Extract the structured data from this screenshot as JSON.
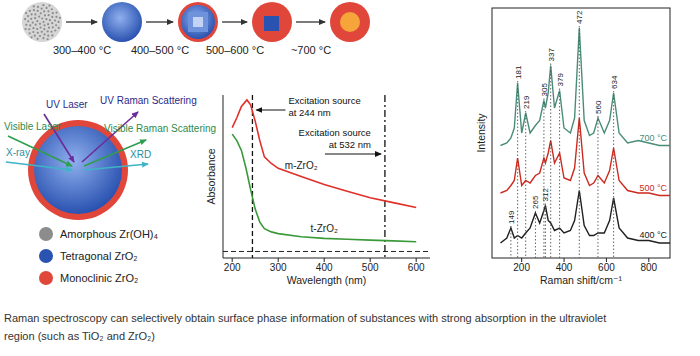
{
  "diagram": {
    "temperatures": [
      "300–400 °C",
      "400–500 °C",
      "500–600 °C",
      "~700 °C"
    ],
    "probes": [
      "UV Laser",
      "UV Raman Scattering",
      "Visible Laser",
      "Visible Raman Scattering",
      "X-ray",
      "XRD"
    ],
    "legend": [
      {
        "label": "Amorphous Zr(OH)₄",
        "color": "#8c8c8c"
      },
      {
        "label": "Tetragonal ZrO₂",
        "color": "#2a52b0"
      },
      {
        "label": "Monoclinic ZrO₂",
        "color": "#e0463a"
      }
    ]
  },
  "chart_data": [
    {
      "type": "line",
      "x_label": "Wavelength (nm)",
      "y_label": "Absorbance",
      "xlim": [
        180,
        630
      ],
      "xticks": [
        200,
        300,
        400,
        500,
        600
      ],
      "ylim": [
        0,
        1
      ],
      "tick_labels": "x",
      "series": [
        {
          "name": "m-ZrO₂",
          "color": "#e0302a",
          "x": [
            200,
            210,
            220,
            232,
            240,
            250,
            260,
            270,
            285,
            300,
            350,
            400,
            450,
            500,
            550,
            600
          ],
          "values": [
            0.8,
            0.86,
            0.93,
            0.97,
            0.94,
            0.84,
            0.72,
            0.62,
            0.58,
            0.55,
            0.5,
            0.45,
            0.41,
            0.37,
            0.34,
            0.31
          ]
        },
        {
          "name": "t-ZrO₂",
          "color": "#3a9a3a",
          "x": [
            200,
            210,
            220,
            230,
            240,
            250,
            260,
            270,
            285,
            300,
            350,
            400,
            450,
            500,
            550,
            600
          ],
          "values": [
            0.76,
            0.72,
            0.66,
            0.55,
            0.42,
            0.3,
            0.22,
            0.18,
            0.16,
            0.15,
            0.13,
            0.12,
            0.115,
            0.11,
            0.105,
            0.1
          ]
        }
      ],
      "excitation": [
        {
          "value": 244,
          "lines": [
            "Excitation source",
            "at 244 nm"
          ]
        },
        {
          "value": 532,
          "lines": [
            "Excitation source",
            "at 532 nm"
          ]
        }
      ],
      "baseline": 0.04
    },
    {
      "type": "line",
      "x_label": "Raman shift/cm⁻¹",
      "y_label": "Intensity",
      "xlim": [
        60,
        900
      ],
      "xticks": [
        200,
        400,
        600,
        800
      ],
      "ylim": [
        0,
        100
      ],
      "tick_labels": "x",
      "x": [
        100,
        130,
        149,
        165,
        181,
        200,
        219,
        240,
        265,
        285,
        305,
        312,
        325,
        337,
        355,
        379,
        400,
        430,
        450,
        472,
        495,
        520,
        540,
        560,
        590,
        615,
        634,
        660,
        700,
        750,
        800,
        850,
        900
      ],
      "series": [
        {
          "name": "700 °C",
          "color": "#4a8c78",
          "values": [
            45,
            46,
            48,
            52,
            70,
            50,
            58,
            50,
            53,
            55,
            63,
            60,
            66,
            77,
            60,
            67,
            52,
            50,
            56,
            92,
            55,
            49,
            50,
            56,
            50,
            55,
            66,
            50,
            46,
            47,
            46,
            45,
            45
          ]
        },
        {
          "name": "500 °C",
          "color": "#cc2a1e",
          "values": [
            26,
            27,
            29,
            31,
            40,
            29,
            31,
            30,
            33,
            34,
            40,
            38,
            42,
            47,
            38,
            42,
            32,
            31,
            36,
            56,
            34,
            29,
            30,
            33,
            30,
            35,
            44,
            31,
            27,
            26,
            26,
            25,
            25
          ]
        },
        {
          "name": "400 °C",
          "color": "#202020",
          "values": [
            6,
            8,
            12,
            8,
            9,
            8,
            10,
            12,
            18,
            14,
            19,
            21,
            15,
            14,
            11,
            12,
            10,
            11,
            15,
            27,
            13,
            9,
            9,
            10,
            10,
            15,
            24,
            12,
            8,
            7,
            7,
            6,
            6
          ]
        }
      ],
      "peak_labels_top": [
        181,
        219,
        305,
        337,
        379,
        472,
        560,
        634
      ],
      "peak_labels_bottom": [
        149,
        265,
        312
      ]
    }
  ],
  "caption": [
    "Raman spectroscopy can selectively obtain surface phase information of substances with strong absorption in the ultraviolet",
    "region (such as TiO₂ and ZrO₂)"
  ]
}
